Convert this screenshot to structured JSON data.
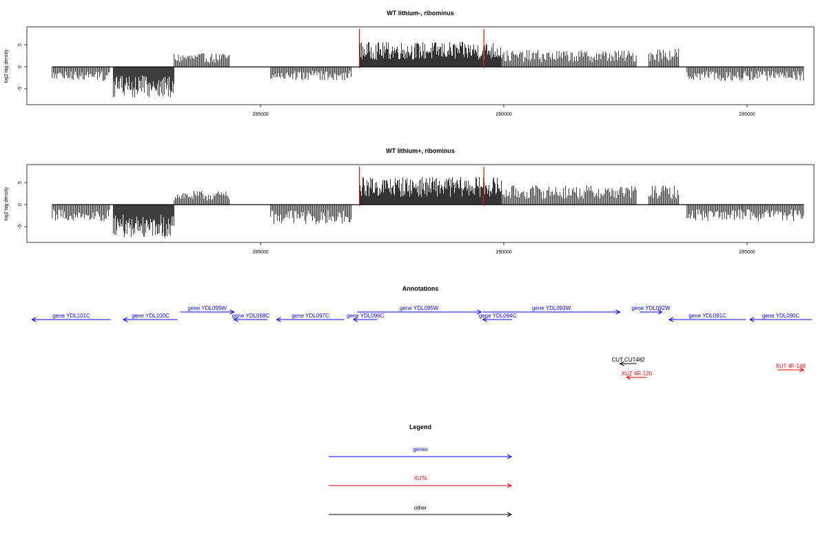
{
  "panels": [
    {
      "title": "WT lithium-, ribominus",
      "ylabel": "log2 tag density",
      "yticks": [
        "-5",
        "0",
        "5"
      ],
      "xticks": [
        "285000",
        "290000",
        "295000"
      ]
    },
    {
      "title": "WT lithium+, ribominus",
      "ylabel": "log2 tag density",
      "yticks": [
        "-5",
        "0",
        "5"
      ],
      "xticks": [
        "285000",
        "290000",
        "295000"
      ]
    }
  ],
  "annotations_title": "Annotations",
  "legend_title": "Legend",
  "colors": {
    "gene": "#0000ff",
    "xut": "#ff0000",
    "other": "#000000",
    "highlight": "#ff0000"
  },
  "chart_data": [
    {
      "type": "bar",
      "title": "WT lithium-, ribominus",
      "xlabel": "",
      "ylabel": "log2 tag density",
      "xlim": [
        280500,
        296000
      ],
      "ylim": [
        -8.5,
        9
      ],
      "xticks": [
        285000,
        290000,
        295000
      ],
      "yticks": [
        -5,
        0,
        5
      ],
      "grid": false,
      "highlight_lines_x": [
        287050,
        289500
      ],
      "series": [
        {
          "values": [
            {
              "x": [
                281000,
                282150
              ],
              "y": -2.5
            },
            {
              "x": [
                282200,
                283400
              ],
              "y": -5.5
            },
            {
              "x": [
                283400,
                284500
              ],
              "y": 2.5
            },
            {
              "x": [
                285300,
                286900
              ],
              "y": -2.5
            },
            {
              "x": [
                287050,
                289850
              ],
              "y": 4.5
            },
            {
              "x": [
                289850,
                292500
              ],
              "y": 3.0
            },
            {
              "x": [
                292750,
                293350
              ],
              "y": 3.5
            },
            {
              "x": [
                293500,
                294600
              ],
              "y": -2.5
            },
            {
              "x": [
                294600,
                295800
              ],
              "y": -2.5
            }
          ]
        }
      ]
    },
    {
      "type": "bar",
      "title": "WT lithium+, ribominus",
      "xlabel": "",
      "ylabel": "log2 tag density",
      "xlim": [
        280500,
        296000
      ],
      "ylim": [
        -8.5,
        9
      ],
      "xticks": [
        285000,
        290000,
        295000
      ],
      "yticks": [
        -5,
        0,
        5
      ],
      "grid": false,
      "highlight_lines_x": [
        287050,
        289500
      ],
      "series": [
        {
          "values": [
            {
              "x": [
                281000,
                282150
              ],
              "y": -3.0
            },
            {
              "x": [
                282200,
                283400
              ],
              "y": -6.0
            },
            {
              "x": [
                283400,
                284500
              ],
              "y": 2.5
            },
            {
              "x": [
                285300,
                286900
              ],
              "y": -3.5
            },
            {
              "x": [
                287050,
                289850
              ],
              "y": 5.0
            },
            {
              "x": [
                289850,
                292500
              ],
              "y": 3.5
            },
            {
              "x": [
                292750,
                293350
              ],
              "y": 3.5
            },
            {
              "x": [
                293500,
                294600
              ],
              "y": -3.0
            },
            {
              "x": [
                294600,
                295800
              ],
              "y": -3.0
            }
          ]
        }
      ]
    }
  ],
  "features": [
    {
      "label": "gene YDL101C",
      "kind": "gene",
      "strand": "-",
      "start": 280600,
      "end": 282150,
      "row": 1
    },
    {
      "label": "gene YDL100C",
      "kind": "gene",
      "strand": "-",
      "start": 282400,
      "end": 283470,
      "row": 1
    },
    {
      "label": "gene YDL099W",
      "kind": "gene",
      "strand": "+",
      "start": 283520,
      "end": 284580,
      "row": 0
    },
    {
      "label": "gene YDL098C",
      "kind": "gene",
      "strand": "-",
      "start": 284580,
      "end": 285240,
      "row": 1
    },
    {
      "label": "gene YDL097C",
      "kind": "gene",
      "strand": "-",
      "start": 285420,
      "end": 286750,
      "row": 1
    },
    {
      "label": "gene YDL096C",
      "kind": "gene",
      "strand": "-",
      "start": 286930,
      "end": 287400,
      "row": 1
    },
    {
      "label": "gene YDL095W",
      "kind": "gene",
      "strand": "+",
      "start": 287000,
      "end": 289450,
      "row": 0
    },
    {
      "label": "gene YDL094C",
      "kind": "gene",
      "strand": "-",
      "start": 289480,
      "end": 290060,
      "row": 1
    },
    {
      "label": "gene YDL093W",
      "kind": "gene",
      "strand": "+",
      "start": 289480,
      "end": 292180,
      "row": 0
    },
    {
      "label": "gene YDL092W",
      "kind": "gene",
      "strand": "+",
      "start": 292570,
      "end": 293010,
      "row": 0
    },
    {
      "label": "gene YDL091C",
      "kind": "gene",
      "strand": "-",
      "start": 293150,
      "end": 294660,
      "row": 1
    },
    {
      "label": "gene YDL090C",
      "kind": "gene",
      "strand": "-",
      "start": 294740,
      "end": 296000,
      "row": 1
    },
    {
      "label": "CUT CUT482",
      "kind": "other",
      "strand": "-",
      "start": 292180,
      "end": 292510,
      "row": 2
    },
    {
      "label": "XUT 4R-120",
      "kind": "xut",
      "strand": "-",
      "start": 292310,
      "end": 292710,
      "row": 4
    },
    {
      "label": "XUT 4F-148",
      "kind": "xut",
      "strand": "+",
      "start": 295280,
      "end": 295800,
      "row": 3
    }
  ],
  "legend": [
    {
      "label": "genes",
      "color": "#0000ff"
    },
    {
      "label": "XUTs",
      "color": "#ff0000"
    },
    {
      "label": "other",
      "color": "#000000"
    }
  ]
}
